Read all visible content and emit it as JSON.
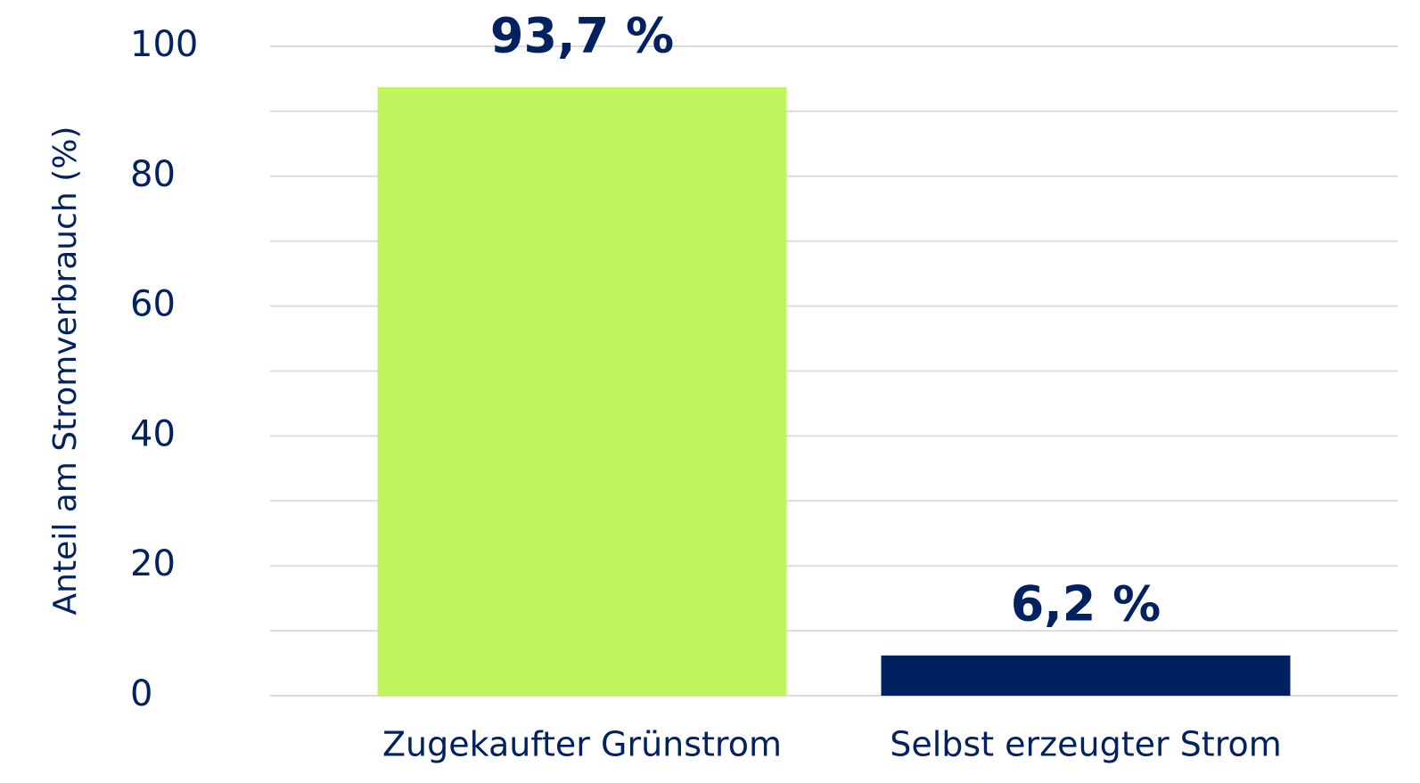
{
  "chart_data": {
    "type": "bar",
    "ylabel": "Anteil am Stromverbrauch (%)",
    "categories": [
      "Zugekaufter Grünstrom",
      "Selbst erzeugter Strom"
    ],
    "values": [
      93.7,
      6.2
    ],
    "value_labels": [
      "93,7 %",
      "6,2 %"
    ],
    "colors": [
      "#c0f45e",
      "#00215f"
    ],
    "ylim": [
      0,
      100
    ],
    "yticks": [
      0,
      20,
      40,
      60,
      80,
      100
    ],
    "minor_yticks": [
      10,
      30,
      50,
      70,
      90
    ],
    "grid": true
  }
}
